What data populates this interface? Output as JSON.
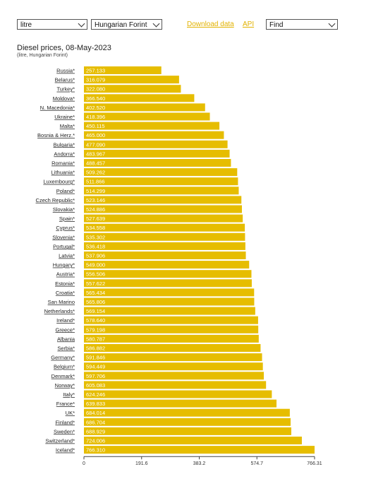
{
  "controls": {
    "unit_select": "litre",
    "currency_select": "Hungarian Forint",
    "download_link": "Download data",
    "api_link": "API",
    "find_select": "Find"
  },
  "chart_data": {
    "type": "bar",
    "orientation": "horizontal",
    "title": "Diesel prices, 08-May-2023",
    "subtitle": "(litre, Hungarian Forint)",
    "bar_color": "#e6bd00",
    "label_color": "#ffffff",
    "categories": [
      "Russia*",
      "Belarus*",
      "Turkey*",
      "Moldova*",
      "N. Macedonia*",
      "Ukraine*",
      "Malta*",
      "Bosnia & Herz.*",
      "Bulgaria*",
      "Andorra*",
      "Romania*",
      "Lithuania*",
      "Luxembourg*",
      "Poland*",
      "Czech Republic*",
      "Slovakia*",
      "Spain*",
      "Cyprus*",
      "Slovenia*",
      "Portugal*",
      "Latvia*",
      "Hungary*",
      "Austria*",
      "Estonia*",
      "Croatia*",
      "San Marino",
      "Netherlands*",
      "Ireland*",
      "Greece*",
      "Albania",
      "Serbia*",
      "Germany*",
      "Belgium*",
      "Denmark*",
      "Norway*",
      "Italy*",
      "France*",
      "UK*",
      "Finland*",
      "Sweden*",
      "Switzerland*",
      "Iceland*"
    ],
    "values": [
      257.133,
      316.079,
      322.08,
      366.54,
      402.52,
      418.396,
      450.115,
      465.0,
      477.09,
      483.967,
      488.457,
      509.262,
      511.866,
      514.299,
      523.146,
      524.886,
      527.639,
      534.558,
      535.302,
      536.418,
      537.906,
      549.0,
      556.506,
      557.622,
      565.434,
      565.806,
      569.154,
      578.64,
      579.198,
      580.787,
      586.882,
      591.846,
      594.449,
      597.706,
      605.083,
      624.246,
      639.833,
      684.014,
      686.704,
      688.929,
      724.006,
      766.31
    ],
    "value_labels": [
      "257.133",
      "316.079",
      "322.080",
      "366.540",
      "402.520",
      "418.396",
      "450.115",
      "465.000",
      "477.090",
      "483.967",
      "488.457",
      "509.262",
      "511.866",
      "514.299",
      "523.146",
      "524.886",
      "527.639",
      "534.558",
      "535.302",
      "536.418",
      "537.906",
      "549.000",
      "556.506",
      "557.622",
      "565.434",
      "565.806",
      "569.154",
      "578.640",
      "579.198",
      "580.787",
      "586.882",
      "591.846",
      "594.449",
      "597.706",
      "605.083",
      "624.246",
      "639.833",
      "684.014",
      "686.704",
      "688.929",
      "724.006",
      "766.310"
    ],
    "xlim": [
      0,
      766.31
    ],
    "x_ticks": [
      0,
      191.6,
      383.2,
      574.7,
      766.31
    ],
    "x_tick_labels": [
      "0",
      "191.6",
      "383.2",
      "574.7",
      "766.31"
    ]
  }
}
